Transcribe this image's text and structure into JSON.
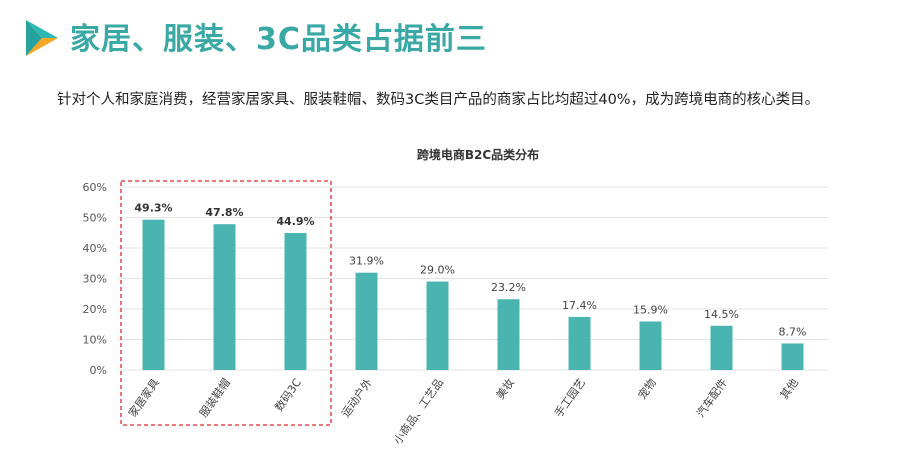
{
  "headline": "家居、服装、3C品类占据前三",
  "subtitle": "针对个人和家庭消费，经营家居家具、服装鞋帽、数码3C类目产品的商家占比均超过40%，成为跨境电商的核心类目。",
  "colors": {
    "accent": "#3aa9a6",
    "bar": "#4ab5b0",
    "highlight_border": "#e0282e",
    "logo_top": "#2fb9b3",
    "logo_bottom": "#f4a623"
  },
  "chart_data": {
    "type": "bar",
    "title": "跨境电商B2C品类分布",
    "categories": [
      "家居家具",
      "服装鞋帽",
      "数码3C",
      "运动户外",
      "小商品、工艺品",
      "美妆",
      "手工园艺",
      "宠物",
      "汽车配件",
      "其他"
    ],
    "values": [
      49.3,
      47.8,
      44.9,
      31.9,
      29.0,
      23.2,
      17.4,
      15.9,
      14.5,
      8.7
    ],
    "data_labels": [
      "49.3%",
      "47.8%",
      "44.9%",
      "31.9%",
      "29.0%",
      "23.2%",
      "17.4%",
      "15.9%",
      "14.5%",
      "8.7%"
    ],
    "ylim": [
      0,
      60
    ],
    "yticks": [
      "0%",
      "10%",
      "20%",
      "30%",
      "40%",
      "50%",
      "60%"
    ],
    "grid": true,
    "highlighted_categories": [
      "家居家具",
      "服装鞋帽",
      "数码3C"
    ]
  }
}
